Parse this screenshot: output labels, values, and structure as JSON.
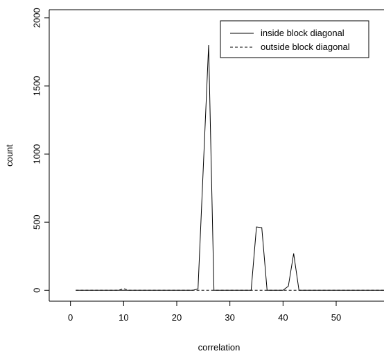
{
  "chart_data": {
    "type": "line",
    "xlabel": "correlation",
    "ylabel": "count",
    "xlim": [
      1,
      59
    ],
    "ylim": [
      -80,
      2060
    ],
    "xticks": [
      0,
      10,
      20,
      30,
      40,
      50
    ],
    "yticks": [
      0,
      500,
      1000,
      1500,
      2000
    ],
    "xtick_labels": [
      "0",
      "10",
      "20",
      "30",
      "40",
      "50"
    ],
    "ytick_labels": [
      "0",
      "500",
      "1000",
      "1500",
      "2000"
    ],
    "grid": false,
    "legend_position": "top-right",
    "series": [
      {
        "name": "inside block diagonal",
        "line_style": "solid",
        "color": "#000000",
        "x": [
          1,
          23,
          24,
          26,
          27,
          34,
          35,
          36,
          37,
          40,
          41,
          42,
          43,
          59
        ],
        "y": [
          0,
          0,
          10,
          1800,
          0,
          0,
          465,
          460,
          0,
          0,
          30,
          270,
          0,
          0
        ]
      },
      {
        "name": "outside block diagonal",
        "line_style": "dashed",
        "color": "#000000",
        "x": [
          1,
          9,
          10,
          11,
          59
        ],
        "y": [
          0,
          0,
          12,
          0,
          0
        ]
      }
    ]
  }
}
